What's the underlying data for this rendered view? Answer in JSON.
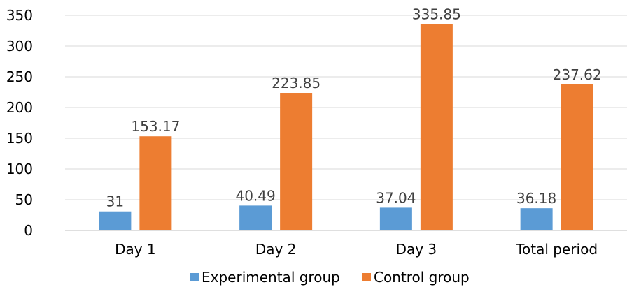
{
  "chart_data": {
    "type": "bar",
    "categories": [
      "Day 1",
      "Day 2",
      "Day 3",
      "Total period"
    ],
    "series": [
      {
        "name": "Experimental group",
        "values": [
          31,
          40.49,
          37.04,
          36.18
        ],
        "color": "#5B9BD5",
        "labels": [
          "31",
          "40.49",
          "37.04",
          "36.18"
        ]
      },
      {
        "name": "Control group",
        "values": [
          153.17,
          223.85,
          335.85,
          237.62
        ],
        "color": "#ED7D31",
        "labels": [
          "153.17",
          "223.85",
          "335.85",
          "237.62"
        ]
      }
    ],
    "title": "",
    "xlabel": "",
    "ylabel": "",
    "ylim": [
      0,
      350
    ],
    "yticks": [
      "0",
      "50",
      "100",
      "150",
      "200",
      "250",
      "300",
      "350"
    ],
    "grid": true,
    "legend_position": "bottom"
  }
}
